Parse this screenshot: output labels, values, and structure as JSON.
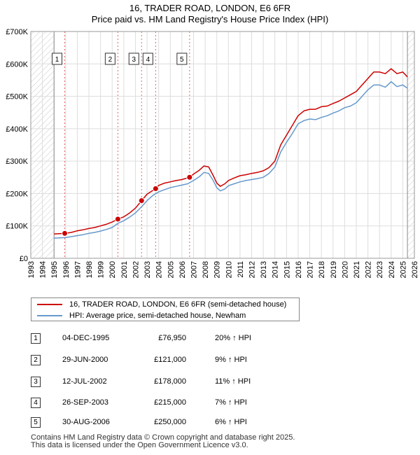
{
  "chart_data": {
    "type": "line",
    "title": "16, TRADER ROAD, LONDON, E6 6FR",
    "subtitle": "Price paid vs. HM Land Registry's House Price Index (HPI)",
    "xlim": [
      1993,
      2026
    ],
    "ylim": [
      0,
      700000
    ],
    "x_ticks": [
      "1993",
      "1994",
      "1995",
      "1996",
      "1997",
      "1998",
      "1999",
      "2000",
      "2001",
      "2002",
      "2003",
      "2004",
      "2005",
      "2006",
      "2007",
      "2008",
      "2009",
      "2010",
      "2011",
      "2012",
      "2013",
      "2014",
      "2015",
      "2016",
      "2017",
      "2018",
      "2019",
      "2020",
      "2021",
      "2022",
      "2023",
      "2024",
      "2025",
      "2026"
    ],
    "y_ticks": [
      {
        "value": 0,
        "label": "£0"
      },
      {
        "value": 100000,
        "label": "£100K"
      },
      {
        "value": 200000,
        "label": "£200K"
      },
      {
        "value": 300000,
        "label": "£300K"
      },
      {
        "value": 400000,
        "label": "£400K"
      },
      {
        "value": 500000,
        "label": "£500K"
      },
      {
        "value": 600000,
        "label": "£600K"
      },
      {
        "value": 700000,
        "label": "£700K"
      }
    ],
    "grid": true,
    "hatched_ranges": [
      [
        1993,
        1995.0
      ],
      [
        2025.4,
        2026
      ]
    ],
    "series": [
      {
        "name": "16, TRADER ROAD, LONDON, E6 6FR (semi-detached house)",
        "color": "#cc0000",
        "x": [
          1995.0,
          1995.92,
          1996.5,
          1997.0,
          1997.5,
          1998.0,
          1998.5,
          1999.0,
          1999.5,
          2000.0,
          2000.49,
          2001.0,
          2001.5,
          2002.0,
          2002.53,
          2003.0,
          2003.74,
          2004.0,
          2004.5,
          2005.0,
          2005.5,
          2006.0,
          2006.66,
          2007.0,
          2007.5,
          2007.9,
          2008.3,
          2008.7,
          2009.0,
          2009.3,
          2009.7,
          2010.0,
          2010.5,
          2011.0,
          2011.5,
          2012.0,
          2012.5,
          2013.0,
          2013.5,
          2014.0,
          2014.5,
          2015.0,
          2015.5,
          2016.0,
          2016.5,
          2017.0,
          2017.5,
          2018.0,
          2018.5,
          2019.0,
          2019.5,
          2020.0,
          2020.5,
          2021.0,
          2021.5,
          2022.0,
          2022.5,
          2023.0,
          2023.5,
          2024.0,
          2024.5,
          2025.0,
          2025.4
        ],
        "y": [
          75000,
          76950,
          80000,
          85000,
          88000,
          92000,
          95000,
          100000,
          105000,
          112000,
          121000,
          128000,
          140000,
          155000,
          178000,
          198000,
          215000,
          225000,
          232000,
          236000,
          240000,
          243000,
          250000,
          260000,
          272000,
          285000,
          282000,
          255000,
          232000,
          222000,
          230000,
          240000,
          248000,
          255000,
          258000,
          262000,
          265000,
          270000,
          280000,
          300000,
          350000,
          380000,
          410000,
          440000,
          455000,
          460000,
          460000,
          468000,
          470000,
          478000,
          485000,
          495000,
          505000,
          515000,
          535000,
          555000,
          575000,
          575000,
          570000,
          585000,
          570000,
          575000,
          560000
        ]
      },
      {
        "name": "HPI: Average price, semi-detached house, Newham",
        "color": "#6699cc",
        "x": [
          1995.0,
          1995.5,
          1996.0,
          1996.5,
          1997.0,
          1997.5,
          1998.0,
          1998.5,
          1999.0,
          1999.5,
          2000.0,
          2000.5,
          2001.0,
          2001.5,
          2002.0,
          2002.5,
          2003.0,
          2003.5,
          2004.0,
          2004.5,
          2005.0,
          2005.5,
          2006.0,
          2006.5,
          2007.0,
          2007.5,
          2007.9,
          2008.3,
          2008.7,
          2009.0,
          2009.3,
          2009.7,
          2010.0,
          2010.5,
          2011.0,
          2011.5,
          2012.0,
          2012.5,
          2013.0,
          2013.5,
          2014.0,
          2014.5,
          2015.0,
          2015.5,
          2016.0,
          2016.5,
          2017.0,
          2017.5,
          2018.0,
          2018.5,
          2019.0,
          2019.5,
          2020.0,
          2020.5,
          2021.0,
          2021.5,
          2022.0,
          2022.5,
          2023.0,
          2023.5,
          2024.0,
          2024.5,
          2025.0,
          2025.4
        ],
        "y": [
          62000,
          63000,
          64000,
          67000,
          70000,
          73000,
          77000,
          80000,
          84000,
          89000,
          95000,
          108000,
          116000,
          127000,
          140000,
          158000,
          178000,
          194000,
          205000,
          212000,
          218000,
          222000,
          226000,
          230000,
          240000,
          252000,
          265000,
          262000,
          240000,
          218000,
          208000,
          214000,
          224000,
          230000,
          236000,
          240000,
          243000,
          246000,
          250000,
          262000,
          282000,
          328000,
          358000,
          385000,
          415000,
          425000,
          430000,
          428000,
          435000,
          440000,
          448000,
          455000,
          465000,
          470000,
          480000,
          500000,
          520000,
          535000,
          535000,
          528000,
          545000,
          530000,
          535000,
          525000
        ]
      }
    ],
    "sales": [
      {
        "label": "1",
        "x": 1995.92,
        "price": 76950
      },
      {
        "label": "2",
        "x": 2000.49,
        "price": 121000
      },
      {
        "label": "3",
        "x": 2002.53,
        "price": 178000
      },
      {
        "label": "4",
        "x": 2003.74,
        "price": 215000
      },
      {
        "label": "5",
        "x": 2006.66,
        "price": 250000
      }
    ]
  },
  "legend": {
    "property_label": "16, TRADER ROAD, LONDON, E6 6FR (semi-detached house)",
    "hpi_label": "HPI: Average price, semi-detached house, Newham"
  },
  "transactions": [
    {
      "num": "1",
      "date": "04-DEC-1995",
      "price": "£76,950",
      "hpi": "20% ↑ HPI"
    },
    {
      "num": "2",
      "date": "29-JUN-2000",
      "price": "£121,000",
      "hpi": "9% ↑ HPI"
    },
    {
      "num": "3",
      "date": "12-JUL-2002",
      "price": "£178,000",
      "hpi": "11% ↑ HPI"
    },
    {
      "num": "4",
      "date": "26-SEP-2003",
      "price": "£215,000",
      "hpi": "7% ↑ HPI"
    },
    {
      "num": "5",
      "date": "30-AUG-2006",
      "price": "£250,000",
      "hpi": "6% ↑ HPI"
    }
  ],
  "footer": {
    "line1": "Contains HM Land Registry data © Crown copyright and database right 2025.",
    "line2": "This data is licensed under the Open Government Licence v3.0."
  }
}
